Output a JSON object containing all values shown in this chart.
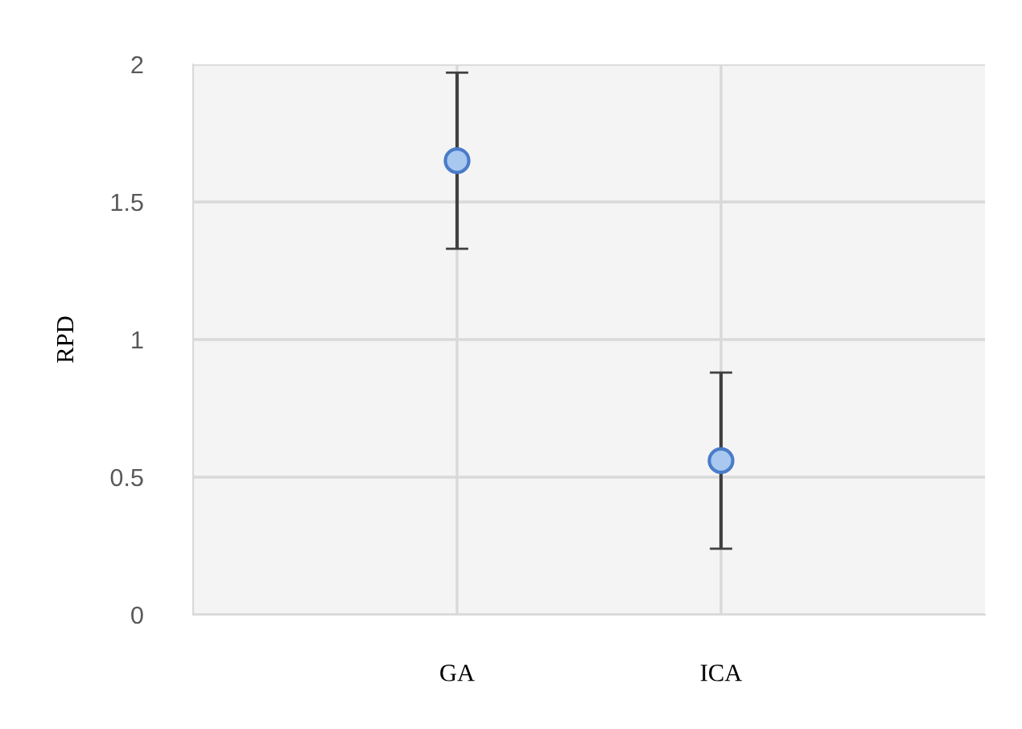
{
  "chart_data": {
    "type": "scatter",
    "ylabel": "RPD",
    "categories": [
      "GA",
      "ICA"
    ],
    "series": [
      {
        "color": "#a9c8f0",
        "values": [
          1.65,
          0.56
        ],
        "errors": [
          0.32,
          0.32
        ]
      }
    ],
    "ylim": [
      0,
      2
    ],
    "yticks": [
      0,
      0.5,
      1,
      1.5,
      2
    ],
    "grid": true,
    "marker": "circle"
  }
}
